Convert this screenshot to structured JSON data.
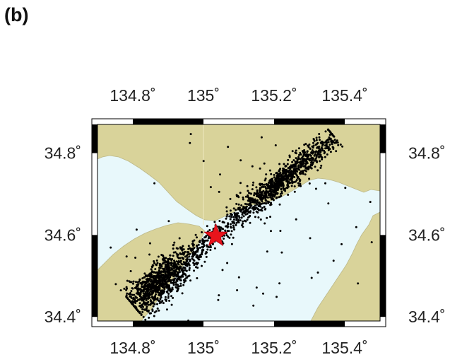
{
  "panel_label": "(b)",
  "map": {
    "lon_range": [
      134.7,
      135.5
    ],
    "lat_range": [
      34.39,
      34.87
    ],
    "lon_ticks": [
      {
        "value": 134.8,
        "label": "134.8˚"
      },
      {
        "value": 135.0,
        "label": "135˚"
      },
      {
        "value": 135.2,
        "label": "135.2˚"
      },
      {
        "value": 135.4,
        "label": "135.4˚"
      }
    ],
    "lat_ticks": [
      {
        "value": 34.8,
        "label": "34.8˚"
      },
      {
        "value": 34.6,
        "label": "34.6˚"
      },
      {
        "value": 34.4,
        "label": "34.4˚"
      }
    ],
    "colors": {
      "land": "#d9d39a",
      "sea": "#e8f8fb",
      "coast": "#bdb98a",
      "epicenter_dot": "#000000",
      "mainshock": "#e8141b",
      "frame": "#000000"
    },
    "mainshock": {
      "lon": 135.035,
      "lat": 34.598,
      "symbol": "star-icon"
    },
    "aftershock_zone": {
      "start": {
        "lon": 134.8,
        "lat": 34.43
      },
      "end": {
        "lon": 135.37,
        "lat": 34.84
      },
      "count": 2200
    }
  }
}
